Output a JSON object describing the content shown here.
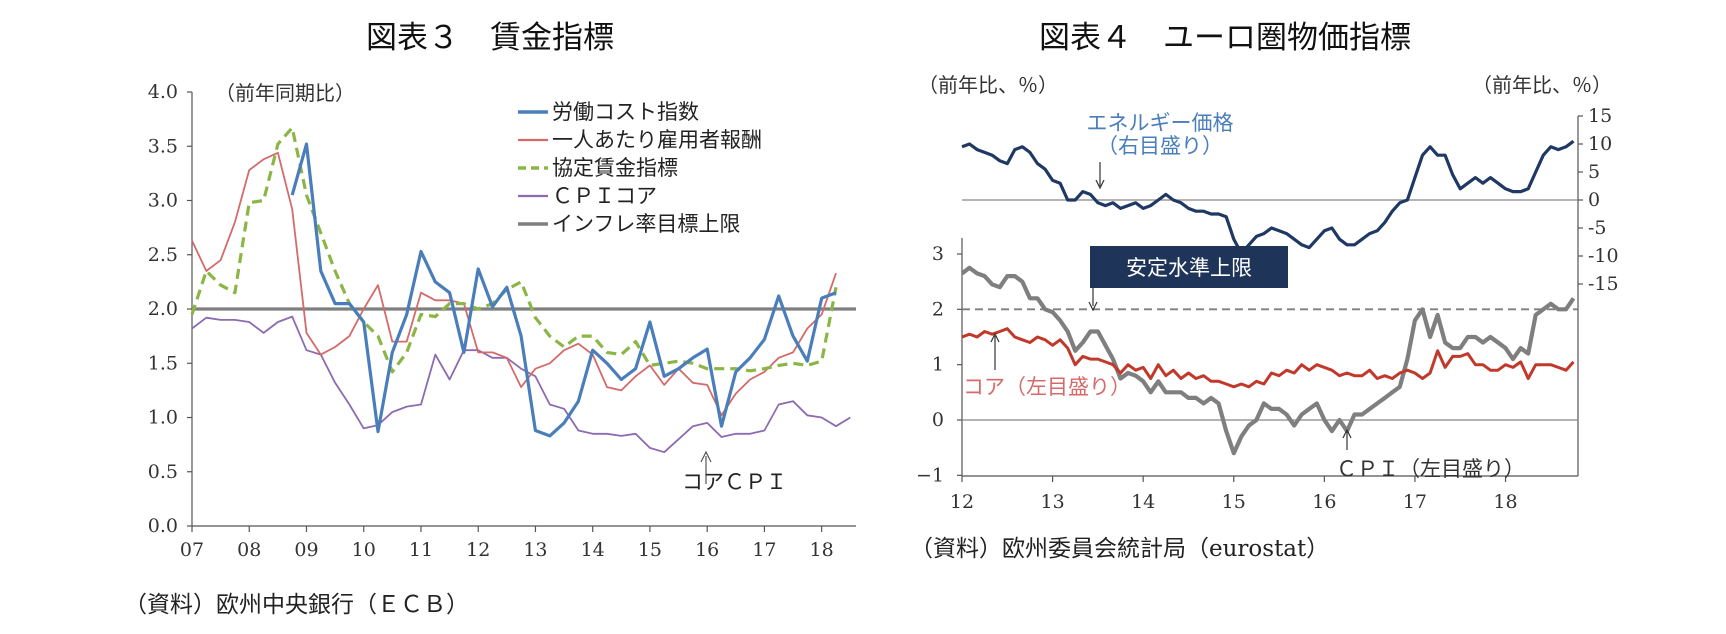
{
  "chart_data": [
    {
      "type": "line",
      "title": "図表３　賃金指標",
      "unit_label": "（前年同期比）",
      "source": "（資料）欧州中央銀行（ＥＣＢ）",
      "x_tick_labels": [
        "07",
        "08",
        "09",
        "10",
        "11",
        "12",
        "13",
        "14",
        "15",
        "16",
        "17",
        "18"
      ],
      "x_range": [
        2007,
        2018.6
      ],
      "ylim": [
        0,
        4
      ],
      "y_tick_labels": [
        "4.0",
        "3.5",
        "3.0",
        "2.5",
        "2.0",
        "1.5",
        "1.0",
        "0.5",
        "0.0"
      ],
      "grid": false,
      "legend_position": "top-right",
      "annotation": "コアＣＰＩ",
      "series": [
        {
          "name": "労働コスト指数",
          "color": "#4a7ebb",
          "style": "solid",
          "x": [
            2008.75,
            2009.0,
            2009.25,
            2009.5,
            2009.75,
            2010.0,
            2010.25,
            2010.5,
            2010.75,
            2011.0,
            2011.25,
            2011.5,
            2011.75,
            2012.0,
            2012.25,
            2012.5,
            2012.75,
            2013.0,
            2013.25,
            2013.5,
            2013.75,
            2014.0,
            2014.25,
            2014.5,
            2014.75,
            2015.0,
            2015.25,
            2015.5,
            2015.75,
            2016.0,
            2016.25,
            2016.5,
            2016.75,
            2017.0,
            2017.25,
            2017.5,
            2017.75,
            2018.0,
            2018.25
          ],
          "y": [
            3.05,
            3.52,
            2.35,
            2.05,
            2.05,
            1.88,
            0.87,
            1.6,
            1.95,
            2.53,
            2.25,
            2.15,
            1.6,
            2.37,
            2.02,
            2.2,
            1.75,
            0.88,
            0.83,
            0.95,
            1.15,
            1.62,
            1.5,
            1.35,
            1.45,
            1.88,
            1.38,
            1.45,
            1.55,
            1.63,
            0.92,
            1.42,
            1.55,
            1.72,
            2.12,
            1.75,
            1.52,
            2.1,
            2.15
          ]
        },
        {
          "name": "一人あたり雇用者報酬",
          "color": "#d46a6a",
          "style": "solid",
          "x": [
            2007.0,
            2007.25,
            2007.5,
            2007.75,
            2008.0,
            2008.25,
            2008.5,
            2008.75,
            2009.0,
            2009.25,
            2009.5,
            2009.75,
            2010.0,
            2010.25,
            2010.5,
            2010.75,
            2011.0,
            2011.25,
            2011.5,
            2011.75,
            2012.0,
            2012.25,
            2012.5,
            2012.75,
            2013.0,
            2013.25,
            2013.5,
            2013.75,
            2014.0,
            2014.25,
            2014.5,
            2014.75,
            2015.0,
            2015.25,
            2015.5,
            2015.75,
            2016.0,
            2016.25,
            2016.5,
            2016.75,
            2017.0,
            2017.25,
            2017.5,
            2017.75,
            2018.0,
            2018.25
          ],
          "y": [
            2.63,
            2.35,
            2.45,
            2.8,
            3.28,
            3.38,
            3.44,
            2.92,
            1.78,
            1.58,
            1.65,
            1.75,
            2.0,
            2.22,
            1.7,
            1.7,
            2.15,
            2.08,
            2.08,
            2.05,
            1.6,
            1.6,
            1.55,
            1.28,
            1.45,
            1.5,
            1.62,
            1.68,
            1.58,
            1.28,
            1.25,
            1.38,
            1.48,
            1.3,
            1.45,
            1.32,
            1.3,
            1.02,
            1.22,
            1.35,
            1.42,
            1.55,
            1.6,
            1.82,
            1.95,
            2.33
          ]
        },
        {
          "name": "協定賃金指標",
          "color": "#8bb645",
          "style": "dashed",
          "x": [
            2007.0,
            2007.25,
            2007.5,
            2007.75,
            2008.0,
            2008.25,
            2008.5,
            2008.75,
            2009.0,
            2009.25,
            2009.5,
            2009.75,
            2010.0,
            2010.25,
            2010.5,
            2010.75,
            2011.0,
            2011.25,
            2011.5,
            2011.75,
            2012.0,
            2012.25,
            2012.5,
            2012.75,
            2013.0,
            2013.25,
            2013.5,
            2013.75,
            2014.0,
            2014.25,
            2014.5,
            2014.75,
            2015.0,
            2015.25,
            2015.5,
            2015.75,
            2016.0,
            2016.25,
            2016.5,
            2016.75,
            2017.0,
            2017.25,
            2017.5,
            2017.75,
            2018.0,
            2018.25
          ],
          "y": [
            1.95,
            2.35,
            2.22,
            2.15,
            2.98,
            3.0,
            3.52,
            3.67,
            3.05,
            2.7,
            2.35,
            2.05,
            1.88,
            1.75,
            1.42,
            1.6,
            1.95,
            1.93,
            2.05,
            2.05,
            2.0,
            2.05,
            2.18,
            2.25,
            1.92,
            1.75,
            1.65,
            1.75,
            1.75,
            1.6,
            1.58,
            1.7,
            1.48,
            1.5,
            1.52,
            1.5,
            1.45,
            1.45,
            1.45,
            1.43,
            1.45,
            1.48,
            1.5,
            1.48,
            1.52,
            2.2
          ]
        },
        {
          "name": "ＣＰＩコア",
          "color": "#8c6bb1",
          "style": "solid",
          "x": [
            2007.0,
            2007.25,
            2007.5,
            2007.75,
            2008.0,
            2008.25,
            2008.5,
            2008.75,
            2009.0,
            2009.25,
            2009.5,
            2009.75,
            2010.0,
            2010.25,
            2010.5,
            2010.75,
            2011.0,
            2011.25,
            2011.5,
            2011.75,
            2012.0,
            2012.25,
            2012.5,
            2012.75,
            2013.0,
            2013.25,
            2013.5,
            2013.75,
            2014.0,
            2014.25,
            2014.5,
            2014.75,
            2015.0,
            2015.25,
            2015.5,
            2015.75,
            2016.0,
            2016.25,
            2016.5,
            2016.75,
            2017.0,
            2017.25,
            2017.5,
            2017.75,
            2018.0,
            2018.25,
            2018.5
          ],
          "y": [
            1.82,
            1.92,
            1.9,
            1.9,
            1.88,
            1.78,
            1.88,
            1.93,
            1.62,
            1.58,
            1.32,
            1.12,
            0.9,
            0.93,
            1.05,
            1.1,
            1.12,
            1.58,
            1.35,
            1.62,
            1.62,
            1.55,
            1.55,
            1.45,
            1.38,
            1.12,
            1.08,
            0.88,
            0.85,
            0.85,
            0.83,
            0.85,
            0.72,
            0.68,
            0.8,
            0.92,
            0.95,
            0.82,
            0.85,
            0.85,
            0.88,
            1.12,
            1.15,
            1.02,
            1.0,
            0.92,
            1.0
          ]
        },
        {
          "name": "インフレ率目標上限",
          "color": "#7f7f7f",
          "style": "solid",
          "x": [
            2007.0,
            2018.6
          ],
          "y": [
            2.0,
            2.0
          ]
        }
      ]
    },
    {
      "type": "line",
      "title": "図表４　ユーロ圏物価指標",
      "left_unit_label": "（前年比、％）",
      "right_unit_label": "（前年比、％）",
      "source": "（資料）欧州委員会統計局（eurostat）",
      "x_tick_labels": [
        "12",
        "13",
        "14",
        "15",
        "16",
        "17",
        "18"
      ],
      "x_range": [
        2012.0,
        2018.8
      ],
      "left_ylim": [
        -1,
        3
      ],
      "left_y_tick_labels": [
        "3",
        "2",
        "1",
        "0",
        "−1"
      ],
      "right_ylim": [
        -15,
        15
      ],
      "right_y_tick_labels": [
        "15",
        "10",
        "5",
        "0",
        "-5",
        "-10",
        "-15"
      ],
      "grid": false,
      "stable_level_label": "安定水準上限",
      "annotations": {
        "energy": "エネルギー価格",
        "energy_axis": "（右目盛り）",
        "core": "コア（左目盛り）",
        "cpi": "ＣＰＩ（左目盛り）"
      },
      "series": [
        {
          "name": "エネルギー価格",
          "axis": "right",
          "color": "#1f3864",
          "x": [
            2012.0,
            2012.083,
            2012.167,
            2012.25,
            2012.333,
            2012.417,
            2012.5,
            2012.583,
            2012.667,
            2012.75,
            2012.833,
            2012.917,
            2013.0,
            2013.083,
            2013.167,
            2013.25,
            2013.333,
            2013.417,
            2013.5,
            2013.583,
            2013.667,
            2013.75,
            2013.833,
            2013.917,
            2014.0,
            2014.083,
            2014.167,
            2014.25,
            2014.333,
            2014.417,
            2014.5,
            2014.583,
            2014.667,
            2014.75,
            2014.833,
            2014.917,
            2015.0,
            2015.083,
            2015.167,
            2015.25,
            2015.333,
            2015.417,
            2015.5,
            2015.583,
            2015.667,
            2015.75,
            2015.833,
            2015.917,
            2016.0,
            2016.083,
            2016.167,
            2016.25,
            2016.333,
            2016.417,
            2016.5,
            2016.583,
            2016.667,
            2016.75,
            2016.833,
            2016.917,
            2017.0,
            2017.083,
            2017.167,
            2017.25,
            2017.333,
            2017.417,
            2017.5,
            2017.583,
            2017.667,
            2017.75,
            2017.833,
            2017.917,
            2018.0,
            2018.083,
            2018.167,
            2018.25,
            2018.333,
            2018.417,
            2018.5,
            2018.583,
            2018.667,
            2018.75
          ],
          "y": [
            9.5,
            10,
            9,
            8.5,
            8,
            7,
            6.5,
            9,
            9.5,
            8.5,
            6.5,
            5.5,
            3.5,
            3,
            0,
            0,
            1.5,
            1,
            -0.5,
            -1,
            -0.5,
            -1.5,
            -1,
            -0.5,
            -1.5,
            -1,
            0,
            1,
            0,
            -0.5,
            -1.5,
            -2,
            -2,
            -2.5,
            -2.5,
            -3,
            -7,
            -9.5,
            -8,
            -6.5,
            -6,
            -5,
            -5.5,
            -6,
            -7,
            -8,
            -8.5,
            -7,
            -5.5,
            -5,
            -7,
            -8,
            -8,
            -7,
            -6,
            -5.5,
            -4,
            -2,
            -0.5,
            0,
            4,
            8,
            9.5,
            8,
            8,
            4.5,
            2,
            3,
            4,
            3,
            4,
            3,
            2,
            1.5,
            1.5,
            2,
            5,
            8,
            9.5,
            9,
            9.5,
            10.5
          ]
        },
        {
          "name": "コア",
          "axis": "left",
          "color": "#c0392b",
          "x": [
            2012.0,
            2012.083,
            2012.167,
            2012.25,
            2012.333,
            2012.417,
            2012.5,
            2012.583,
            2012.667,
            2012.75,
            2012.833,
            2012.917,
            2013.0,
            2013.083,
            2013.167,
            2013.25,
            2013.333,
            2013.417,
            2013.5,
            2013.583,
            2013.667,
            2013.75,
            2013.833,
            2013.917,
            2014.0,
            2014.083,
            2014.167,
            2014.25,
            2014.333,
            2014.417,
            2014.5,
            2014.583,
            2014.667,
            2014.75,
            2014.833,
            2014.917,
            2015.0,
            2015.083,
            2015.167,
            2015.25,
            2015.333,
            2015.417,
            2015.5,
            2015.583,
            2015.667,
            2015.75,
            2015.833,
            2015.917,
            2016.0,
            2016.083,
            2016.167,
            2016.25,
            2016.333,
            2016.417,
            2016.5,
            2016.583,
            2016.667,
            2016.75,
            2016.833,
            2016.917,
            2017.0,
            2017.083,
            2017.167,
            2017.25,
            2017.333,
            2017.417,
            2017.5,
            2017.583,
            2017.667,
            2017.75,
            2017.833,
            2017.917,
            2018.0,
            2018.083,
            2018.167,
            2018.25,
            2018.333,
            2018.417,
            2018.5,
            2018.583,
            2018.667,
            2018.75
          ],
          "y": [
            1.5,
            1.55,
            1.5,
            1.6,
            1.55,
            1.6,
            1.65,
            1.5,
            1.45,
            1.4,
            1.5,
            1.45,
            1.35,
            1.45,
            1.3,
            1.0,
            1.15,
            1.1,
            1.1,
            1.05,
            1.0,
            0.85,
            1.0,
            0.9,
            0.95,
            0.75,
            1.0,
            0.8,
            0.9,
            0.75,
            0.85,
            0.75,
            0.8,
            0.7,
            0.7,
            0.65,
            0.6,
            0.65,
            0.6,
            0.7,
            0.65,
            0.85,
            0.8,
            0.9,
            0.85,
            1.0,
            0.9,
            1.0,
            0.95,
            0.9,
            0.8,
            0.85,
            0.8,
            0.8,
            0.9,
            0.75,
            0.8,
            0.75,
            0.85,
            0.9,
            0.85,
            0.75,
            0.85,
            1.25,
            0.95,
            1.15,
            1.15,
            1.2,
            1.0,
            1.0,
            0.9,
            0.9,
            1.0,
            0.95,
            1.05,
            0.75,
            1.0,
            1.0,
            1.0,
            0.95,
            0.9,
            1.05
          ]
        },
        {
          "name": "ＣＰＩ",
          "axis": "left",
          "color": "#7f7f7f",
          "x": [
            2012.0,
            2012.083,
            2012.167,
            2012.25,
            2012.333,
            2012.417,
            2012.5,
            2012.583,
            2012.667,
            2012.75,
            2012.833,
            2012.917,
            2013.0,
            2013.083,
            2013.167,
            2013.25,
            2013.333,
            2013.417,
            2013.5,
            2013.583,
            2013.667,
            2013.75,
            2013.833,
            2013.917,
            2014.0,
            2014.083,
            2014.167,
            2014.25,
            2014.333,
            2014.417,
            2014.5,
            2014.583,
            2014.667,
            2014.75,
            2014.833,
            2014.917,
            2015.0,
            2015.083,
            2015.167,
            2015.25,
            2015.333,
            2015.417,
            2015.5,
            2015.583,
            2015.667,
            2015.75,
            2015.833,
            2015.917,
            2016.0,
            2016.083,
            2016.167,
            2016.25,
            2016.333,
            2016.417,
            2016.5,
            2016.583,
            2016.667,
            2016.75,
            2016.833,
            2016.917,
            2017.0,
            2017.083,
            2017.167,
            2017.25,
            2017.333,
            2017.417,
            2017.5,
            2017.583,
            2017.667,
            2017.75,
            2017.833,
            2017.917,
            2018.0,
            2018.083,
            2018.167,
            2018.25,
            2018.333,
            2018.417,
            2018.5,
            2018.583,
            2018.667,
            2018.75
          ],
          "y": [
            2.65,
            2.75,
            2.65,
            2.6,
            2.45,
            2.4,
            2.6,
            2.6,
            2.5,
            2.2,
            2.2,
            2.0,
            1.95,
            1.8,
            1.6,
            1.25,
            1.4,
            1.6,
            1.6,
            1.35,
            1.1,
            0.75,
            0.85,
            0.8,
            0.7,
            0.5,
            0.7,
            0.5,
            0.5,
            0.5,
            0.4,
            0.4,
            0.3,
            0.4,
            0.3,
            -0.2,
            -0.6,
            -0.3,
            -0.1,
            0.0,
            0.3,
            0.2,
            0.2,
            0.1,
            -0.1,
            0.1,
            0.2,
            0.3,
            0.0,
            -0.2,
            0.0,
            -0.2,
            0.1,
            0.1,
            0.2,
            0.3,
            0.4,
            0.5,
            0.6,
            1.1,
            1.8,
            2.0,
            1.5,
            1.9,
            1.4,
            1.3,
            1.3,
            1.5,
            1.5,
            1.4,
            1.5,
            1.4,
            1.3,
            1.1,
            1.3,
            1.2,
            1.9,
            2.0,
            2.1,
            2.0,
            2.0,
            2.2
          ]
        },
        {
          "name": "安定水準上限",
          "axis": "left",
          "color": "#7f7f7f",
          "style": "dashed",
          "x": [
            2012.0,
            2018.8
          ],
          "y": [
            2.0,
            2.0
          ]
        }
      ]
    }
  ]
}
